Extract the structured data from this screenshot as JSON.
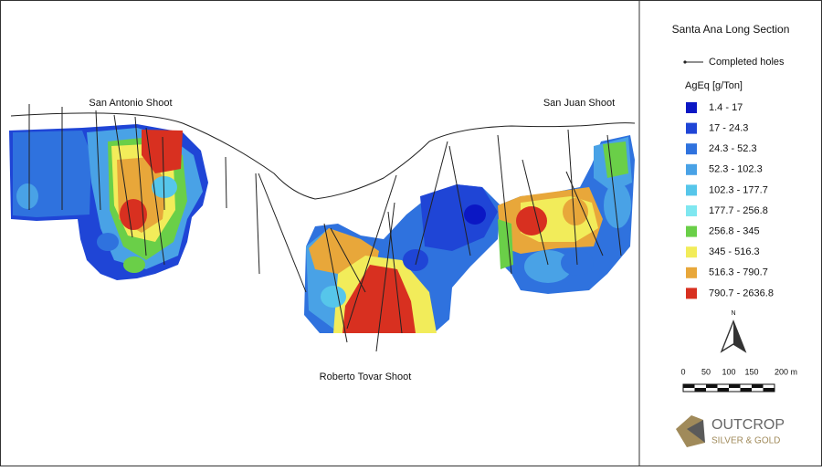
{
  "map": {
    "labels": [
      "San Antonio Shoot",
      "San Juan Shoot",
      "Roberto Tovar Shoot"
    ]
  },
  "legend": {
    "title": "Santa Ana Long Section",
    "line_label": "Completed holes",
    "unit_label": "AgEq  [g/Ton]",
    "items": [
      {
        "label": "1.4 - 17",
        "color": "#0b17c4"
      },
      {
        "label": "17 - 24.3",
        "color": "#1f45d6"
      },
      {
        "label": "24.3 - 52.3",
        "color": "#2f72de"
      },
      {
        "label": "52.3 - 102.3",
        "color": "#49a2e6"
      },
      {
        "label": "102.3 - 177.7",
        "color": "#56c6ea"
      },
      {
        "label": "177.7 - 256.8",
        "color": "#7fe7f0"
      },
      {
        "label": "256.8 - 345",
        "color": "#6acf48"
      },
      {
        "label": "345 - 516.3",
        "color": "#f2ec5a"
      },
      {
        "label": "516.3 - 790.7",
        "color": "#e8a73a"
      },
      {
        "label": "790.7 - 2636.8",
        "color": "#d83020"
      }
    ]
  },
  "north": "N",
  "scale": [
    "0",
    "50",
    "100",
    "150",
    "200 m"
  ],
  "logo": {
    "name": "OUTCROP",
    "sub": "SILVER & GOLD"
  }
}
